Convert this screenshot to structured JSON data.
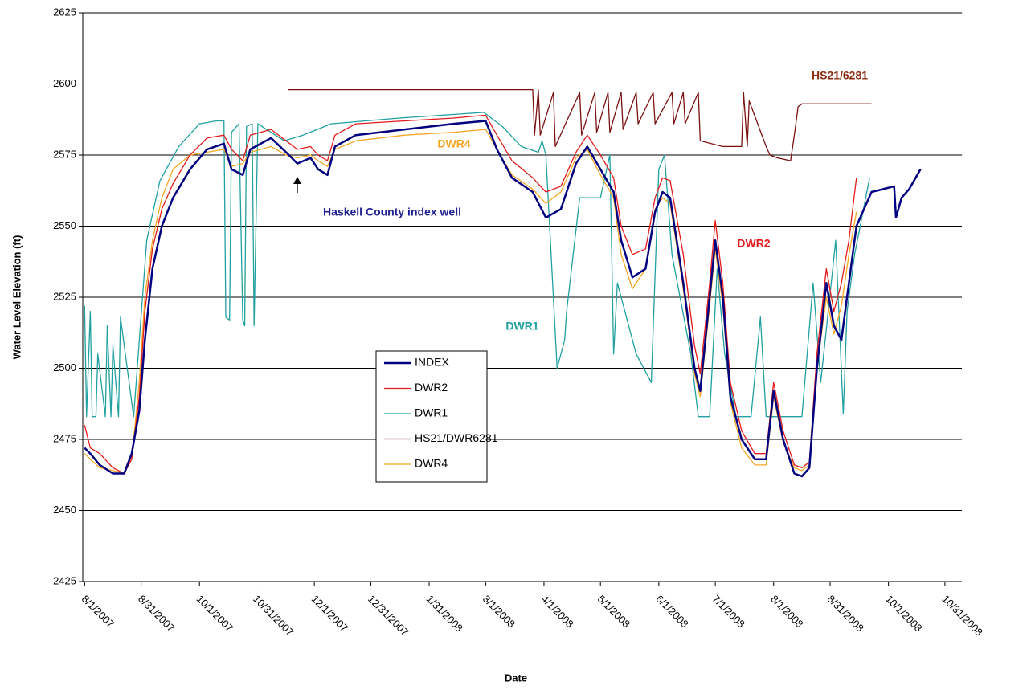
{
  "chart_data": {
    "type": "line",
    "y_label": "Water Level Elevation (ft)",
    "x_label": "Date",
    "xlim": [
      "2007-07-31",
      "2008-11-09"
    ],
    "xticks": [
      {
        "value": "2007-08-01",
        "label": "8/1/2007"
      },
      {
        "value": "2007-08-31",
        "label": "8/31/2007"
      },
      {
        "value": "2007-10-01",
        "label": "10/1/2007"
      },
      {
        "value": "2007-10-31",
        "label": "10/31/2007"
      },
      {
        "value": "2007-12-01",
        "label": "12/1/2007"
      },
      {
        "value": "2007-12-31",
        "label": "12/31/2007"
      },
      {
        "value": "2008-01-31",
        "label": "1/31/2008"
      },
      {
        "value": "2008-03-01",
        "label": "3/1/2008"
      },
      {
        "value": "2008-04-01",
        "label": "4/1/2008"
      },
      {
        "value": "2008-05-01",
        "label": "5/1/2008"
      },
      {
        "value": "2008-06-01",
        "label": "6/1/2008"
      },
      {
        "value": "2008-07-01",
        "label": "7/1/2008"
      },
      {
        "value": "2008-08-01",
        "label": "8/1/2008"
      },
      {
        "value": "2008-08-31",
        "label": "8/31/2008"
      },
      {
        "value": "2008-10-01",
        "label": "10/1/2008"
      },
      {
        "value": "2008-10-31",
        "label": "10/31/2008"
      }
    ],
    "ylim": [
      2425,
      2625
    ],
    "yticks": [
      2425,
      2450,
      2475,
      2500,
      2525,
      2550,
      2575,
      2600,
      2625
    ],
    "grid": true,
    "series": [
      {
        "name": "INDEX",
        "color": "#000080",
        "line_width": 2.5,
        "x": [
          "2007-08-01",
          "2007-08-04",
          "2007-08-09",
          "2007-08-16",
          "2007-08-22",
          "2007-08-26",
          "2007-08-30",
          "2007-09-02",
          "2007-09-06",
          "2007-09-11",
          "2007-09-17",
          "2007-09-26",
          "2007-10-05",
          "2007-10-14",
          "2007-10-18",
          "2007-10-24",
          "2007-10-28",
          "2007-11-08",
          "2007-11-16",
          "2007-11-22",
          "2007-11-29",
          "2007-12-03",
          "2007-12-08",
          "2007-12-12",
          "2007-12-23",
          "2008-01-18",
          "2008-02-13",
          "2008-03-01",
          "2008-03-07",
          "2008-03-15",
          "2008-03-26",
          "2008-04-02",
          "2008-04-10",
          "2008-04-18",
          "2008-04-24",
          "2008-05-01",
          "2008-05-08",
          "2008-05-12",
          "2008-05-18",
          "2008-05-25",
          "2008-05-30",
          "2008-06-03",
          "2008-06-07",
          "2008-06-14",
          "2008-06-20",
          "2008-06-23",
          "2008-06-28",
          "2008-07-01",
          "2008-07-05",
          "2008-07-09",
          "2008-07-15",
          "2008-07-22",
          "2008-07-28",
          "2008-08-01",
          "2008-08-06",
          "2008-08-12",
          "2008-08-16",
          "2008-08-20",
          "2008-08-24",
          "2008-08-29",
          "2008-09-02",
          "2008-09-06",
          "2008-09-10",
          "2008-09-14",
          "2008-09-22",
          "2008-10-04",
          "2008-10-05",
          "2008-10-08",
          "2008-10-12",
          "2008-10-18"
        ],
        "values": [
          2472,
          2470,
          2466,
          2463,
          2463,
          2470,
          2485,
          2510,
          2535,
          2550,
          2560,
          2570,
          2577,
          2579,
          2570,
          2568,
          2577,
          2581,
          2576,
          2572,
          2574,
          2570,
          2568,
          2578,
          2582,
          2584,
          2586,
          2587,
          2577,
          2567,
          2562,
          2553,
          2556,
          2572,
          2578,
          2570,
          2562,
          2545,
          2532,
          2535,
          2555,
          2562,
          2560,
          2530,
          2500,
          2492,
          2525,
          2545,
          2525,
          2490,
          2475,
          2468,
          2468,
          2492,
          2475,
          2463,
          2462,
          2465,
          2500,
          2530,
          2515,
          2510,
          2530,
          2550,
          2562,
          2564,
          2553,
          2560,
          2563,
          2570
        ]
      },
      {
        "name": "DWR2",
        "color": "#e41a1c",
        "line_width": 1.3,
        "x": [
          "2007-08-01",
          "2007-08-04",
          "2007-08-09",
          "2007-08-16",
          "2007-08-22",
          "2007-08-26",
          "2007-08-30",
          "2007-09-02",
          "2007-09-06",
          "2007-09-11",
          "2007-09-17",
          "2007-09-26",
          "2007-10-05",
          "2007-10-14",
          "2007-10-18",
          "2007-10-24",
          "2007-10-28",
          "2007-11-08",
          "2007-11-16",
          "2007-11-22",
          "2007-11-29",
          "2007-12-03",
          "2007-12-08",
          "2007-12-12",
          "2007-12-23",
          "2008-01-18",
          "2008-02-13",
          "2008-03-01",
          "2008-03-07",
          "2008-03-15",
          "2008-03-26",
          "2008-04-02",
          "2008-04-10",
          "2008-04-18",
          "2008-04-24",
          "2008-05-01",
          "2008-05-08",
          "2008-05-12",
          "2008-05-18",
          "2008-05-25",
          "2008-05-30",
          "2008-06-03",
          "2008-06-07",
          "2008-06-14",
          "2008-06-20",
          "2008-06-23",
          "2008-06-28",
          "2008-07-01",
          "2008-07-05",
          "2008-07-09",
          "2008-07-15",
          "2008-07-22",
          "2008-07-28",
          "2008-08-01",
          "2008-08-06",
          "2008-08-12",
          "2008-08-16",
          "2008-08-20",
          "2008-08-24",
          "2008-08-29",
          "2008-09-02",
          "2008-09-06",
          "2008-09-10",
          "2008-09-14"
        ],
        "values": [
          2480,
          2472,
          2470,
          2465,
          2463,
          2468,
          2490,
          2520,
          2542,
          2556,
          2565,
          2575,
          2581,
          2582,
          2577,
          2573,
          2582,
          2584,
          2580,
          2577,
          2578,
          2575,
          2573,
          2582,
          2586,
          2587,
          2588,
          2589,
          2582,
          2573,
          2567,
          2562,
          2564,
          2576,
          2582,
          2575,
          2567,
          2550,
          2540,
          2542,
          2560,
          2567,
          2566,
          2540,
          2508,
          2498,
          2530,
          2552,
          2530,
          2495,
          2478,
          2470,
          2470,
          2495,
          2478,
          2466,
          2465,
          2467,
          2505,
          2535,
          2520,
          2530,
          2545,
          2567
        ]
      },
      {
        "name": "DWR1",
        "color": "#20a0a0",
        "line_width": 1.3,
        "x": [
          "2007-08-01",
          "2007-08-02",
          "2007-08-04",
          "2007-08-05",
          "2007-08-07",
          "2007-08-08",
          "2007-08-12",
          "2007-08-13",
          "2007-08-15",
          "2007-08-16",
          "2007-08-19",
          "2007-08-20",
          "2007-08-27",
          "2007-09-03",
          "2007-09-10",
          "2007-09-20",
          "2007-10-01",
          "2007-10-10",
          "2007-10-14",
          "2007-10-15",
          "2007-10-17",
          "2007-10-18",
          "2007-10-22",
          "2007-10-24",
          "2007-10-25",
          "2007-10-26",
          "2007-10-29",
          "2007-10-30",
          "2007-11-01",
          "2007-11-15",
          "2007-11-25",
          "2007-12-10",
          "2008-01-15",
          "2008-02-29",
          "2008-03-10",
          "2008-03-20",
          "2008-03-29",
          "2008-03-31",
          "2008-04-02",
          "2008-04-08",
          "2008-04-12",
          "2008-04-13",
          "2008-04-20",
          "2008-05-01",
          "2008-05-06",
          "2008-05-08",
          "2008-05-10",
          "2008-05-20",
          "2008-05-28",
          "2008-06-01",
          "2008-06-04",
          "2008-06-08",
          "2008-06-18",
          "2008-06-22",
          "2008-06-28",
          "2008-07-02",
          "2008-07-06",
          "2008-07-12",
          "2008-07-20",
          "2008-07-25",
          "2008-07-28",
          "2008-08-10",
          "2008-08-16",
          "2008-08-22",
          "2008-08-26",
          "2008-09-03",
          "2008-09-07",
          "2008-09-09",
          "2008-09-13",
          "2008-09-21"
        ],
        "values": [
          2522,
          2483,
          2520,
          2483,
          2483,
          2505,
          2483,
          2515,
          2483,
          2508,
          2483,
          2518,
          2483,
          2545,
          2566,
          2578,
          2586,
          2587,
          2587,
          2518,
          2517,
          2583,
          2586,
          2517,
          2515,
          2585,
          2586,
          2515,
          2586,
          2580,
          2582,
          2586,
          2588,
          2590,
          2585,
          2578,
          2576,
          2580,
          2575,
          2500,
          2510,
          2520,
          2560,
          2560,
          2575,
          2505,
          2530,
          2505,
          2495,
          2570,
          2575,
          2540,
          2505,
          2483,
          2483,
          2535,
          2505,
          2483,
          2483,
          2518,
          2483,
          2483,
          2483,
          2530,
          2495,
          2545,
          2484,
          2520,
          2540,
          2567
        ]
      },
      {
        "name": "HS21/DWR6281",
        "color": "#7b1010",
        "line_width": 1.3,
        "x": [
          "2007-11-17",
          "2008-03-26",
          "2008-03-27",
          "2008-03-29",
          "2008-03-30",
          "2008-04-06",
          "2008-04-07",
          "2008-04-20",
          "2008-04-21",
          "2008-04-28",
          "2008-04-29",
          "2008-05-05",
          "2008-05-06",
          "2008-05-12",
          "2008-05-13",
          "2008-05-20",
          "2008-05-21",
          "2008-05-29",
          "2008-05-30",
          "2008-06-08",
          "2008-06-09",
          "2008-06-14",
          "2008-06-15",
          "2008-06-22",
          "2008-06-23",
          "2008-07-05",
          "2008-07-15",
          "2008-07-16",
          "2008-07-18",
          "2008-07-19",
          "2008-07-28",
          "2008-07-30",
          "2008-08-03",
          "2008-08-10",
          "2008-08-12",
          "2008-08-14",
          "2008-08-16",
          "2008-09-22"
        ],
        "values": [
          2598,
          2598,
          2582,
          2598,
          2582,
          2597,
          2578,
          2597,
          2582,
          2597,
          2583,
          2597,
          2583,
          2597,
          2584,
          2597,
          2586,
          2597,
          2586,
          2597,
          2586,
          2597,
          2586,
          2597,
          2580,
          2578,
          2578,
          2597,
          2578,
          2594,
          2578,
          2575,
          2574,
          2573,
          2582,
          2592,
          2593,
          2593
        ]
      },
      {
        "name": "DWR4",
        "color": "#f5a623",
        "line_width": 1.3,
        "x": [
          "2007-08-01",
          "2007-08-04",
          "2007-08-09",
          "2007-08-16",
          "2007-08-22",
          "2007-08-26",
          "2007-08-30",
          "2007-09-02",
          "2007-09-06",
          "2007-09-11",
          "2007-09-17",
          "2007-09-26",
          "2007-10-05",
          "2007-10-14",
          "2007-10-18",
          "2007-10-24",
          "2007-10-28",
          "2007-11-08",
          "2007-11-16",
          "2007-11-22",
          "2007-11-29",
          "2007-12-03",
          "2007-12-08",
          "2007-12-12",
          "2007-12-23",
          "2008-01-18",
          "2008-02-13",
          "2008-03-01",
          "2008-03-07",
          "2008-03-15",
          "2008-03-26",
          "2008-04-02",
          "2008-04-10",
          "2008-04-18",
          "2008-04-24",
          "2008-05-01",
          "2008-05-08",
          "2008-05-12",
          "2008-05-18",
          "2008-05-25",
          "2008-05-30",
          "2008-06-03",
          "2008-06-07",
          "2008-06-14",
          "2008-06-20",
          "2008-06-23",
          "2008-06-28",
          "2008-07-01",
          "2008-07-05",
          "2008-07-09",
          "2008-07-15",
          "2008-07-22",
          "2008-07-28",
          "2008-08-01",
          "2008-08-06",
          "2008-08-12",
          "2008-08-16",
          "2008-08-20",
          "2008-08-24",
          "2008-08-29",
          "2008-09-02",
          "2008-09-06",
          "2008-09-10",
          "2008-09-14"
        ],
        "values": [
          2470,
          2468,
          2465,
          2464,
          2463,
          2468,
          2495,
          2525,
          2545,
          2560,
          2570,
          2575,
          2576,
          2577,
          2571,
          2572,
          2576,
          2578,
          2575,
          2574,
          2575,
          2573,
          2571,
          2577,
          2580,
          2582,
          2583,
          2584,
          2577,
          2568,
          2563,
          2558,
          2562,
          2574,
          2577,
          2568,
          2560,
          2540,
          2528,
          2535,
          2556,
          2560,
          2558,
          2528,
          2498,
          2490,
          2522,
          2542,
          2522,
          2488,
          2472,
          2466,
          2466,
          2490,
          2474,
          2465,
          2464,
          2466,
          2500,
          2525,
          2512,
          2522,
          2540,
          2555
        ]
      }
    ],
    "annotations": [
      {
        "text": "HS21/6281",
        "color": "#8b2e10"
      },
      {
        "text": "DWR4",
        "color": "#f5a623"
      },
      {
        "text": "Haskell County index well",
        "color": "#1f1f8f"
      },
      {
        "text": "DWR2",
        "color": "#e41a1c"
      },
      {
        "text": "DWR1",
        "color": "#20a0a0"
      }
    ]
  }
}
